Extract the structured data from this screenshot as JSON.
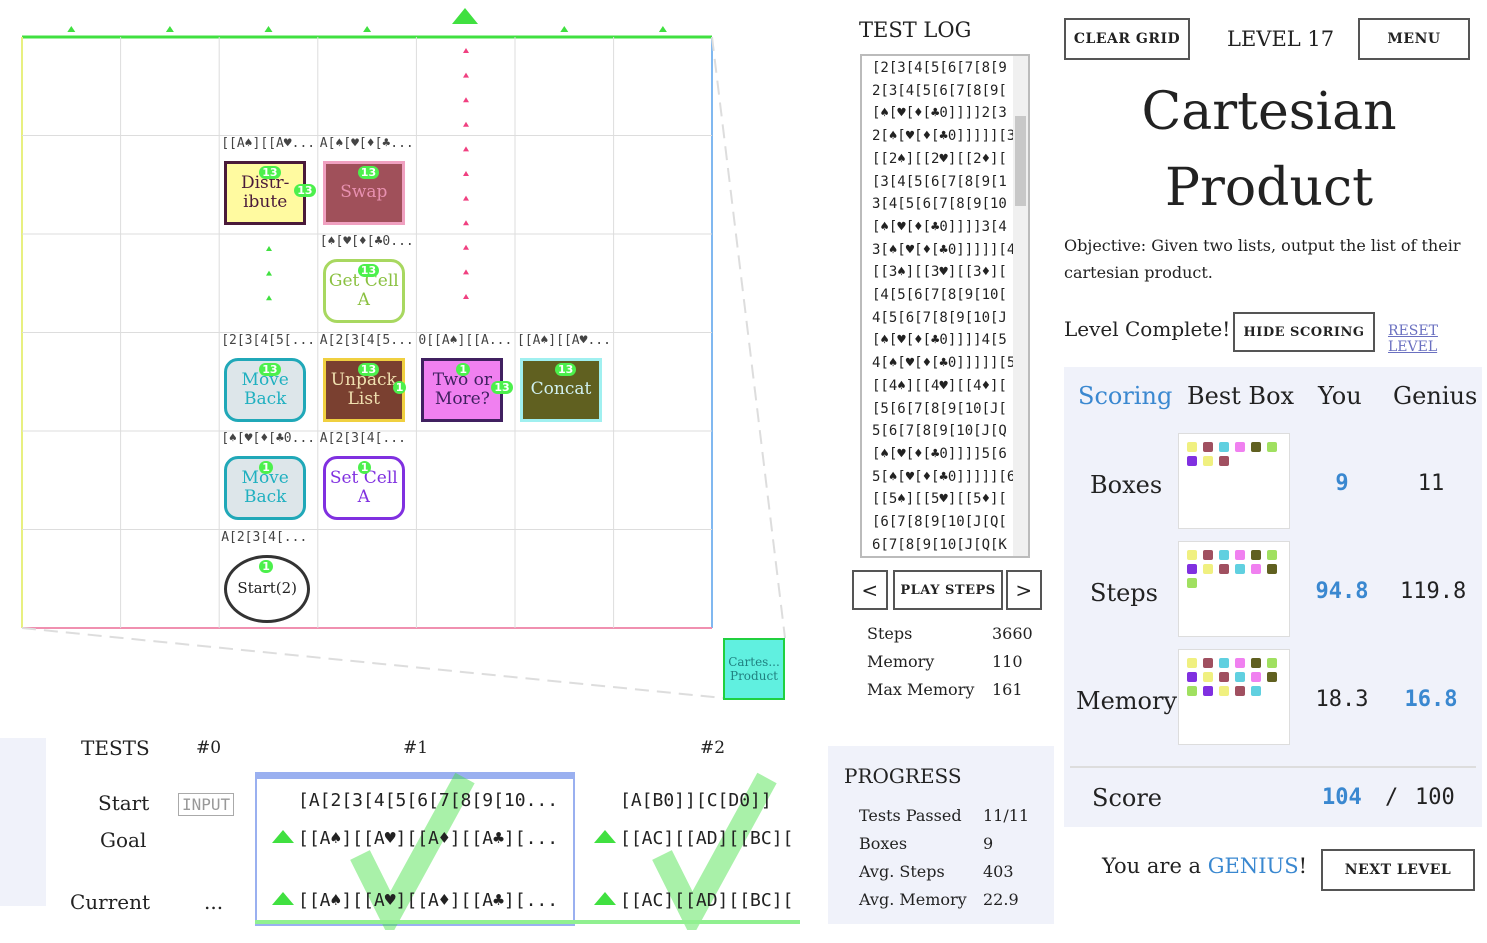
{
  "grid": {
    "boxes": [
      {
        "header": "[[A♠][[A♥...",
        "label": "Distr-ibute",
        "badges": [
          "13",
          "13"
        ]
      },
      {
        "header": "A[♠[♥[♦[♣...",
        "label": "Swap",
        "badges": [
          "13"
        ]
      },
      {
        "header": "[♠[♥[♦[♣0...",
        "label": "Get Cell A",
        "badges": [
          "13"
        ]
      },
      {
        "header": "[2[3[4[5[...",
        "label": "Move Back",
        "badges": [
          "13"
        ]
      },
      {
        "header": "A[2[3[4[5...",
        "label": "Unpack List",
        "badges": [
          "13",
          "1"
        ]
      },
      {
        "header": "0[[A♠][[A...",
        "label": "Two or More?",
        "badges": [
          "1",
          "13"
        ]
      },
      {
        "header": "[[A♠][[A♥...",
        "label": "Concat",
        "badges": [
          "13"
        ]
      },
      {
        "header": "[♠[♥[♦[♣0...",
        "label": "Move Back",
        "badges": [
          "1"
        ]
      },
      {
        "header": "A[2[3[4[...",
        "label": "Set Cell A",
        "badges": [
          "1"
        ]
      },
      {
        "header": "A[2[3[4[...",
        "label": "Start(2)",
        "badges": [
          "1"
        ]
      }
    ],
    "output": "Cartes... Product"
  },
  "test_log": {
    "title": "TEST LOG",
    "lines": [
      "[2[3[4[5[6[7[8[9",
      "2[3[4[5[6[7[8[9[",
      "[♠[♥[♦[♣0]]]]2[3",
      "2[♠[♥[♦[♣0]]]]][3",
      "[[2♠][[2♥][[2♦][",
      "[3[4[5[6[7[8[9[1",
      "3[4[5[6[7[8[9[10",
      "[♠[♥[♦[♣0]]]]3[4",
      "3[♠[♥[♦[♣0]]]]][4",
      "[[3♠][[3♥][[3♦][",
      "[4[5[6[7[8[9[10[",
      "4[5[6[7[8[9[10[J",
      "[♠[♥[♦[♣0]]]]4[5",
      "4[♠[♥[♦[♣0]]]]][5",
      "[[4♠][[4♥][[4♦][",
      "[5[6[7[8[9[10[J[",
      "5[6[7[8[9[10[J[Q",
      "[♠[♥[♦[♣0]]]]5[6",
      "5[♠[♥[♦[♣0]]]]][6",
      "[[5♠][[5♥][[5♦][",
      "[6[7[8[9[10[J[Q[",
      "6[7[8[9[10[J[Q[K"
    ]
  },
  "controls": {
    "prev": "<",
    "play": "PLAY STEPS",
    "next": ">"
  },
  "stats": [
    {
      "label": "Steps",
      "value": 3660
    },
    {
      "label": "Memory",
      "value": 110
    },
    {
      "label": "Max Memory",
      "value": 161
    }
  ],
  "header": {
    "clear": "CLEAR GRID",
    "level": "LEVEL 17",
    "menu": "MENU"
  },
  "title": "Cartesian Product",
  "objective": "Objective: Given two lists, output the list of their cartesian product.",
  "level_complete": "Level Complete!",
  "hide_scoring": "HIDE SCORING",
  "reset_level": "RESET LEVEL",
  "scoring": {
    "headers": [
      "Scoring",
      "Best Box",
      "You",
      "Genius"
    ],
    "rows": [
      {
        "label": "Boxes",
        "you": 9,
        "genius": 11
      },
      {
        "label": "Steps",
        "you": 94.8,
        "genius": 119.8
      },
      {
        "label": "Memory",
        "you": 18.3,
        "genius": 16.8
      }
    ],
    "score": {
      "label": "Score",
      "you": 104,
      "separator": "/",
      "genius": 100
    }
  },
  "result": {
    "prefix": "You are a ",
    "word": "GENIUS",
    "suffix": "!"
  },
  "next_level": "NEXT LEVEL",
  "tests": {
    "title": "TESTS",
    "columns": [
      "#0",
      "#1",
      "#2"
    ],
    "row_labels": [
      "Start",
      "Goal",
      "Current"
    ],
    "input": "INPUT",
    "ellipsis": "...",
    "cases": [
      {
        "start": "[A[2[3[4[5[6[7[8[9[10...",
        "goal": "[[A♠][[A♥][[A♦][[A♣][...",
        "current": "[[A♠][[A♥][[A♦][[A♣][..."
      },
      {
        "start": "[A[B0]][C[D0]]",
        "goal": "[[AC][[AD][[BC][",
        "current": "[[AC][[AD][[BC]["
      }
    ]
  },
  "progress": {
    "title": "PROGRESS",
    "rows": [
      {
        "label": "Tests Passed",
        "value": "11/11"
      },
      {
        "label": "Boxes",
        "value": 9
      },
      {
        "label": "Avg. Steps",
        "value": 403
      },
      {
        "label": "Avg. Memory",
        "value": 22.9
      }
    ]
  }
}
